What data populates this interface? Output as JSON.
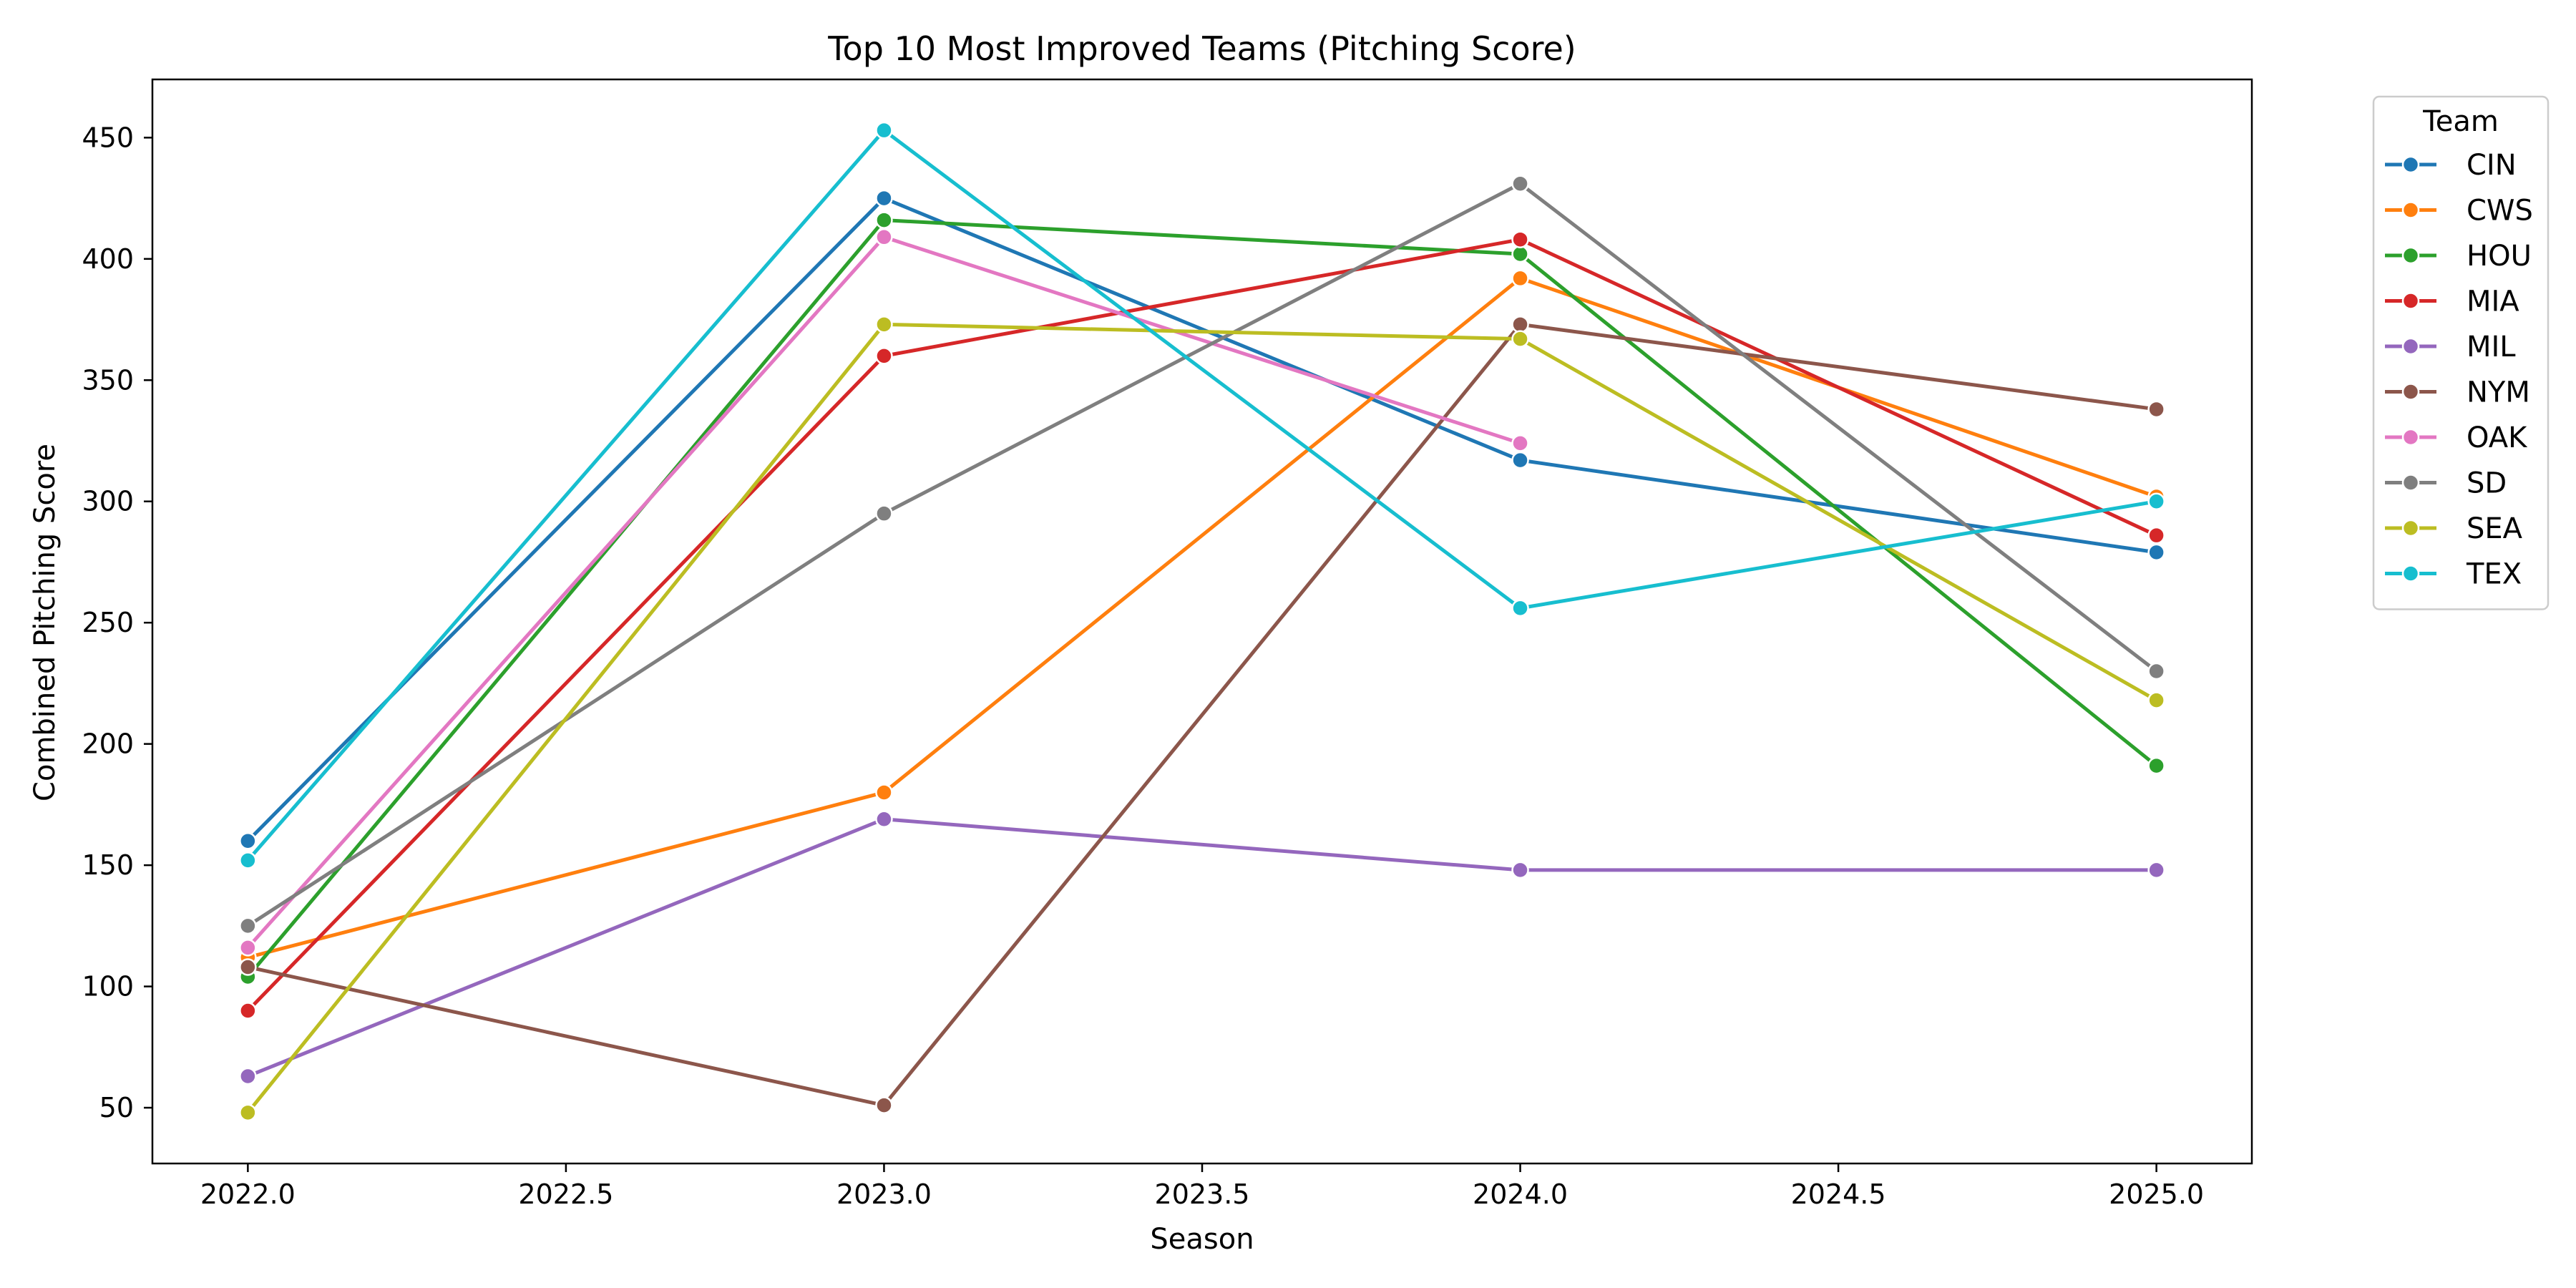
{
  "chart_data": {
    "type": "line",
    "title": "Top 10 Most Improved Teams (Pitching Score)",
    "xlabel": "Season",
    "ylabel": "Combined Pitching Score",
    "xlim": [
      2021.85,
      2025.15
    ],
    "ylim": [
      27,
      474
    ],
    "x_ticks": [
      2022.0,
      2022.5,
      2023.0,
      2023.5,
      2024.0,
      2024.5,
      2025.0
    ],
    "x_tick_labels": [
      "2022.0",
      "2022.5",
      "2023.0",
      "2023.5",
      "2024.0",
      "2024.5",
      "2025.0"
    ],
    "y_ticks": [
      50,
      100,
      150,
      200,
      250,
      300,
      350,
      400,
      450
    ],
    "y_tick_labels": [
      "50",
      "100",
      "150",
      "200",
      "250",
      "300",
      "350",
      "400",
      "450"
    ],
    "grid": false,
    "legend": {
      "title": "Team",
      "placement": "outside-right-top"
    },
    "series": [
      {
        "name": "CIN",
        "color": "#1f77b4",
        "points": [
          [
            2022,
            160
          ],
          [
            2023,
            425
          ],
          [
            2024,
            317
          ],
          [
            2025,
            279
          ]
        ]
      },
      {
        "name": "CWS",
        "color": "#ff7f0e",
        "points": [
          [
            2022,
            112
          ],
          [
            2023,
            180
          ],
          [
            2024,
            392
          ],
          [
            2025,
            302
          ]
        ]
      },
      {
        "name": "HOU",
        "color": "#2ca02c",
        "points": [
          [
            2022,
            104
          ],
          [
            2023,
            416
          ],
          [
            2024,
            402
          ],
          [
            2025,
            191
          ]
        ]
      },
      {
        "name": "MIA",
        "color": "#d62728",
        "points": [
          [
            2022,
            90
          ],
          [
            2023,
            360
          ],
          [
            2024,
            408
          ],
          [
            2025,
            286
          ]
        ]
      },
      {
        "name": "MIL",
        "color": "#9467bd",
        "points": [
          [
            2022,
            63
          ],
          [
            2023,
            169
          ],
          [
            2024,
            148
          ],
          [
            2025,
            148
          ]
        ]
      },
      {
        "name": "NYM",
        "color": "#8c564b",
        "points": [
          [
            2022,
            108
          ],
          [
            2023,
            51
          ],
          [
            2024,
            373
          ],
          [
            2025,
            338
          ]
        ]
      },
      {
        "name": "OAK",
        "color": "#e377c2",
        "points": [
          [
            2022,
            116
          ],
          [
            2023,
            409
          ],
          [
            2024,
            324
          ]
        ]
      },
      {
        "name": "SD",
        "color": "#7f7f7f",
        "points": [
          [
            2022,
            125
          ],
          [
            2023,
            295
          ],
          [
            2024,
            431
          ],
          [
            2025,
            230
          ]
        ]
      },
      {
        "name": "SEA",
        "color": "#bcbd22",
        "points": [
          [
            2022,
            48
          ],
          [
            2023,
            373
          ],
          [
            2024,
            367
          ],
          [
            2025,
            218
          ]
        ]
      },
      {
        "name": "TEX",
        "color": "#17becf",
        "points": [
          [
            2022,
            152
          ],
          [
            2023,
            453
          ],
          [
            2024,
            256
          ],
          [
            2025,
            300
          ]
        ]
      }
    ]
  }
}
